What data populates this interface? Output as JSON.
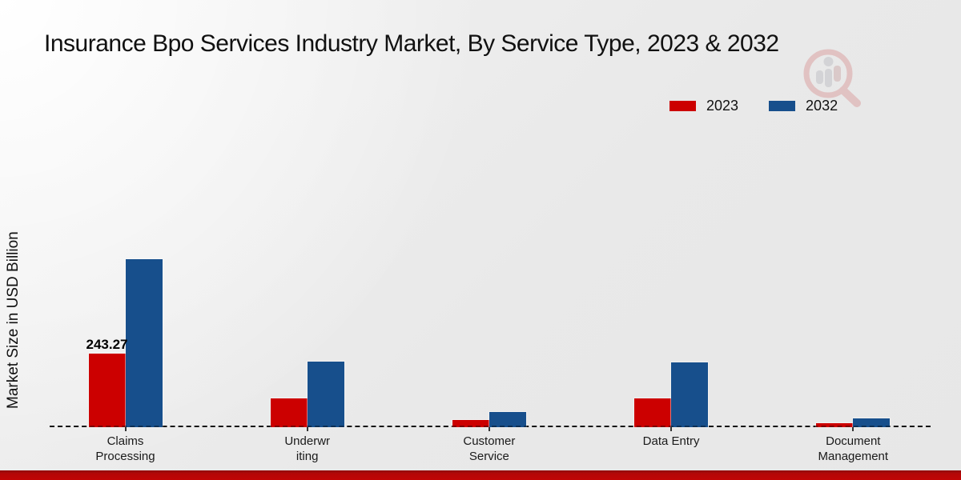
{
  "title": "Insurance Bpo Services Industry Market, By Service Type, 2023 & 2032",
  "ylabel": "Market Size in USD Billion",
  "legend": [
    {
      "label": "2023",
      "color": "#cc0000"
    },
    {
      "label": "2032",
      "color": "#174f8c"
    }
  ],
  "colors": {
    "series_2023": "#cc0000",
    "series_2032": "#174f8c",
    "footer_strip": "#c00505",
    "background": "#e9e9e9"
  },
  "watermark": "magnifier-bar-chart-logo",
  "chart_data": {
    "type": "bar",
    "categories": [
      "Claims Processing",
      "Underwriting",
      "Customer Service",
      "Data Entry",
      "Document Management"
    ],
    "category_labels_wrapped": [
      [
        "Claims",
        "Processing"
      ],
      [
        "Underwr",
        "iting"
      ],
      [
        "Customer",
        "Service"
      ],
      [
        "Data Entry"
      ],
      [
        "Document",
        "Management"
      ]
    ],
    "series": [
      {
        "name": "2023",
        "color": "#cc0000",
        "values": [
          243.27,
          95,
          24,
          94,
          12
        ]
      },
      {
        "name": "2032",
        "color": "#174f8c",
        "values": [
          553,
          215,
          51,
          214,
          30
        ]
      }
    ],
    "bar_labels": [
      {
        "category_index": 0,
        "series_index": 0,
        "text": "243.27"
      }
    ],
    "title": "Insurance Bpo Services Industry Market, By Service Type, 2023 & 2032",
    "xlabel": "",
    "ylabel": "Market Size in USD Billion",
    "ylim": [
      0,
      600
    ],
    "grid": "off",
    "legend_position": "top-right",
    "baseline_style": "dashed"
  }
}
